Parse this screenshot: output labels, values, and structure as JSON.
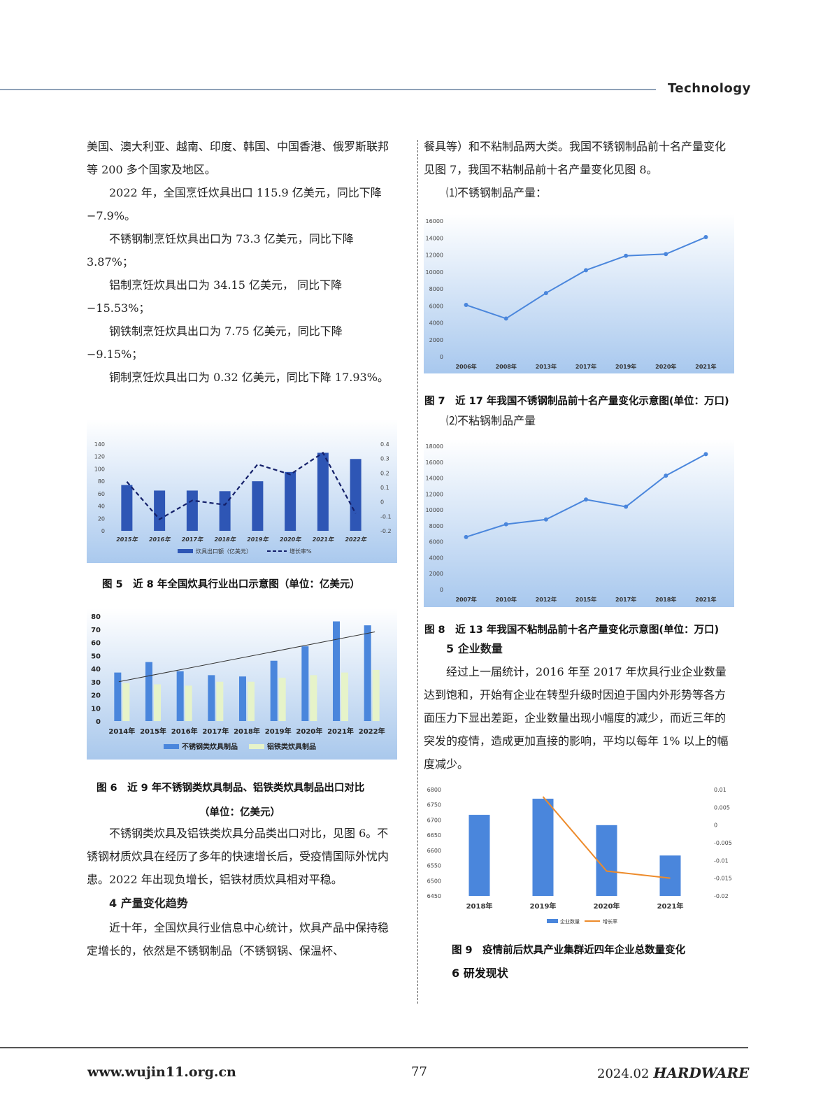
{
  "header": {
    "section": "Technology"
  },
  "left_column": {
    "p1": "美国、澳大利亚、越南、印度、韩国、中国香港、俄罗斯联邦等 200 多个国家及地区。",
    "p2": "2022 年，全国烹饪炊具出口 115.9 亿美元，同比下降 −7.9%。",
    "p3": "不锈钢制烹饪炊具出口为 73.3 亿美元，同比下降 3.87%；",
    "p4": "铝制烹饪炊具出口为 34.15 亿美元， 同比下降 −15.53%；",
    "p5": "钢铁制烹饪炊具出口为 7.75 亿美元，同比下降 −9.15%；",
    "p6": "铜制烹饪炊具出口为 0.32 亿美元，同比下降 17.93%。"
  },
  "left_column_2": {
    "p1": "不锈钢类炊具及铝铁类炊具分品类出口对比，见图 6。不锈钢材质炊具在经历了多年的快速增长后，受疫情国际外忧内患。2022 年出现负增长，铝铁材质炊具相对平稳。",
    "h4": "4 产量变化趋势",
    "p2": "近十年，全国炊具行业信息中心统计，炊具产品中保持稳定增长的，依然是不锈钢制品（不锈钢锅、保温杯、"
  },
  "right_column": {
    "p1": "餐具等）和不粘制品两大类。我国不锈钢制品前十名产量变化见图 7，我国不粘制品前十名产量变化见图 8。",
    "l1": "⑴不锈钢制品产量：",
    "l2": "⑵不粘锅制品产量",
    "h5": "5 企业数量",
    "p2": "经过上一届统计，2016 年至 2017 年炊具行业企业数量达到饱和，开始有企业在转型升级时因迫于国内外形势等各方面压力下显出差距，企业数量出现小幅度的减少，而近三年的突发的疫情，造成更加直接的影响，平均以每年 1% 以上的幅度减少。",
    "h6": "6 研发现状"
  },
  "captions": {
    "fig5": "图 5　近 8 年全国炊具行业出口示意图（单位：亿美元）",
    "fig6a": "图 6　近 9 年不锈钢类炊具制品、铝铁类炊具制品出口对比",
    "fig6b": "（单位：亿美元）",
    "fig7": "图 7　近 17 年我国不锈钢制品前十名产量变化示意图(单位：万口)",
    "fig8": "图 8　近 13 年我国不粘制品前十名产量变化示意图(单位：万口)",
    "fig9": "图 9　疫情前后炊具产业集群近四年企业总数量变化"
  },
  "footer": {
    "url": "www.wujin11.org.cn",
    "page": "77",
    "date": "2024.02",
    "magazine": "HARDWARE"
  },
  "colors": {
    "dark_bar": "#2e56b5",
    "blue_bar": "#4a86dc",
    "light_bar": "#e6f3c9",
    "line_blue": "#4a86dc",
    "orange": "#ed8b2b"
  },
  "chart_data": [
    {
      "id": "fig5",
      "type": "bar",
      "categories": [
        "2015年",
        "2016年",
        "2017年",
        "2018年",
        "2019年",
        "2020年",
        "2021年",
        "2022年"
      ],
      "series": [
        {
          "name": "炊具出口额（亿美元）",
          "type": "bar",
          "axis": "left",
          "values": [
            74,
            65,
            65,
            64,
            80,
            95,
            126,
            116
          ]
        },
        {
          "name": "增长率%",
          "type": "line",
          "axis": "right",
          "style": "dashed",
          "values": [
            0.14,
            -0.12,
            0.01,
            -0.02,
            0.26,
            0.19,
            0.34,
            -0.08
          ]
        }
      ],
      "ylim": [
        0,
        140
      ],
      "yticks": [
        0,
        20,
        40,
        60,
        80,
        100,
        120,
        140
      ],
      "y2lim": [
        -0.2,
        0.4
      ],
      "y2ticks": [
        -0.2,
        -0.1,
        0,
        0.1,
        0.2,
        0.3,
        0.4
      ],
      "legend": "bottom"
    },
    {
      "id": "fig6",
      "type": "bar",
      "categories": [
        "2014年",
        "2015年",
        "2016年",
        "2017年",
        "2018年",
        "2019年",
        "2020年",
        "2021年",
        "2022年"
      ],
      "series": [
        {
          "name": "不锈钢类炊具制品",
          "values": [
            37,
            45,
            38,
            35,
            34,
            46,
            57,
            76,
            73
          ]
        },
        {
          "name": "铝铁类炊具制品",
          "values": [
            29,
            28,
            27,
            30,
            30,
            33,
            35,
            37,
            39
          ]
        }
      ],
      "trendline": {
        "from": 30,
        "to": 68
      },
      "ylim": [
        0,
        80
      ],
      "yticks": [
        0,
        10,
        20,
        30,
        40,
        50,
        60,
        70,
        80
      ],
      "legend": "bottom"
    },
    {
      "id": "fig7",
      "type": "line",
      "categories": [
        "2006年",
        "2008年",
        "2013年",
        "2017年",
        "2019年",
        "2020年",
        "2021年"
      ],
      "values": [
        6100,
        4500,
        7500,
        10200,
        11900,
        12100,
        14100
      ],
      "ylim": [
        0,
        16000
      ],
      "yticks": [
        0,
        2000,
        4000,
        6000,
        8000,
        10000,
        12000,
        14000,
        16000
      ]
    },
    {
      "id": "fig8",
      "type": "line",
      "categories": [
        "2007年",
        "2010年",
        "2012年",
        "2015年",
        "2017年",
        "2018年",
        "2021年"
      ],
      "values": [
        6600,
        8200,
        8800,
        11300,
        10400,
        14300,
        17000
      ],
      "ylim": [
        0,
        18000
      ],
      "yticks": [
        0,
        2000,
        4000,
        6000,
        8000,
        10000,
        12000,
        14000,
        16000,
        18000
      ]
    },
    {
      "id": "fig9",
      "type": "bar",
      "categories": [
        "2018年",
        "2019年",
        "2020年",
        "2021年"
      ],
      "series": [
        {
          "name": "企业数量",
          "type": "bar",
          "axis": "left",
          "values": [
            6717,
            6770,
            6683,
            6583
          ]
        },
        {
          "name": "增长率",
          "type": "line",
          "axis": "right",
          "values": [
            null,
            0.008,
            -0.013,
            -0.015
          ]
        }
      ],
      "ylim": [
        6450,
        6800
      ],
      "yticks": [
        6450,
        6500,
        6550,
        6600,
        6650,
        6700,
        6750,
        6800
      ],
      "y2lim": [
        -0.02,
        0.01
      ],
      "y2ticks": [
        -0.02,
        -0.015,
        -0.01,
        -0.005,
        0,
        0.005,
        0.01
      ],
      "legend": "bottom"
    }
  ]
}
